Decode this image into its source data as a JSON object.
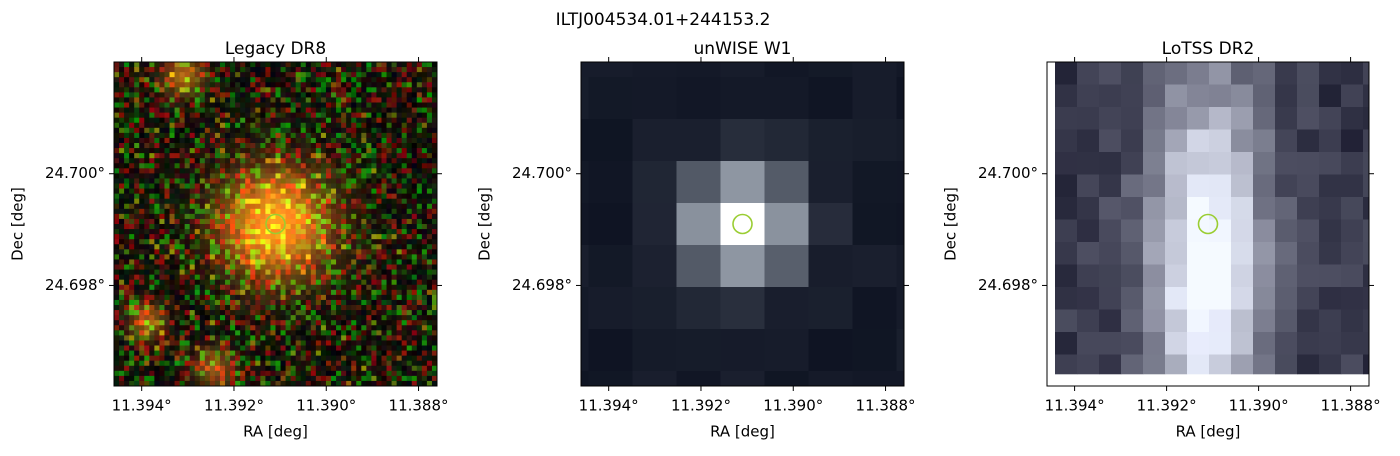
{
  "title": "ILTJ004534.01+244153.2",
  "chart_data": [
    {
      "type": "image",
      "title": "Legacy DR8",
      "xlabel": "RA [deg]",
      "ylabel": "Dec [deg]",
      "xlim": [
        11.3946,
        11.3876
      ],
      "ylim": [
        24.6962,
        24.702
      ],
      "xticks": [
        {
          "value": 11.394,
          "label": "11.394°"
        },
        {
          "value": 11.392,
          "label": "11.392°"
        },
        {
          "value": 11.39,
          "label": "11.390°"
        },
        {
          "value": 11.388,
          "label": "11.388°"
        }
      ],
      "yticks": [
        {
          "value": 24.698,
          "label": "24.698°"
        },
        {
          "value": 24.7,
          "label": "24.700°"
        }
      ],
      "marker": {
        "x": 11.3911,
        "y": 24.6991,
        "color": "#9acd32"
      }
    },
    {
      "type": "image",
      "title": "unWISE W1",
      "xlabel": "RA [deg]",
      "ylabel": "Dec [deg]",
      "xlim": [
        11.3946,
        11.3876
      ],
      "ylim": [
        24.6962,
        24.702
      ],
      "xticks": [
        {
          "value": 11.394,
          "label": "11.394°"
        },
        {
          "value": 11.392,
          "label": "11.392°"
        },
        {
          "value": 11.39,
          "label": "11.390°"
        },
        {
          "value": 11.388,
          "label": "11.388°"
        }
      ],
      "yticks": [
        {
          "value": 24.698,
          "label": "24.698°"
        },
        {
          "value": 24.7,
          "label": "24.700°"
        }
      ],
      "marker": {
        "x": 11.3911,
        "y": 24.6991,
        "color": "#9acd32"
      }
    },
    {
      "type": "image",
      "title": "LoTSS DR2",
      "xlabel": "RA [deg]",
      "ylabel": "Dec [deg]",
      "xlim": [
        11.3946,
        11.3876
      ],
      "ylim": [
        24.6962,
        24.702
      ],
      "xticks": [
        {
          "value": 11.394,
          "label": "11.394°"
        },
        {
          "value": 11.392,
          "label": "11.392°"
        },
        {
          "value": 11.39,
          "label": "11.390°"
        },
        {
          "value": 11.388,
          "label": "11.388°"
        }
      ],
      "yticks": [
        {
          "value": 24.698,
          "label": "24.698°"
        },
        {
          "value": 24.7,
          "label": "24.700°"
        }
      ],
      "marker": {
        "x": 11.3911,
        "y": 24.6991,
        "color": "#9acd32"
      }
    }
  ]
}
